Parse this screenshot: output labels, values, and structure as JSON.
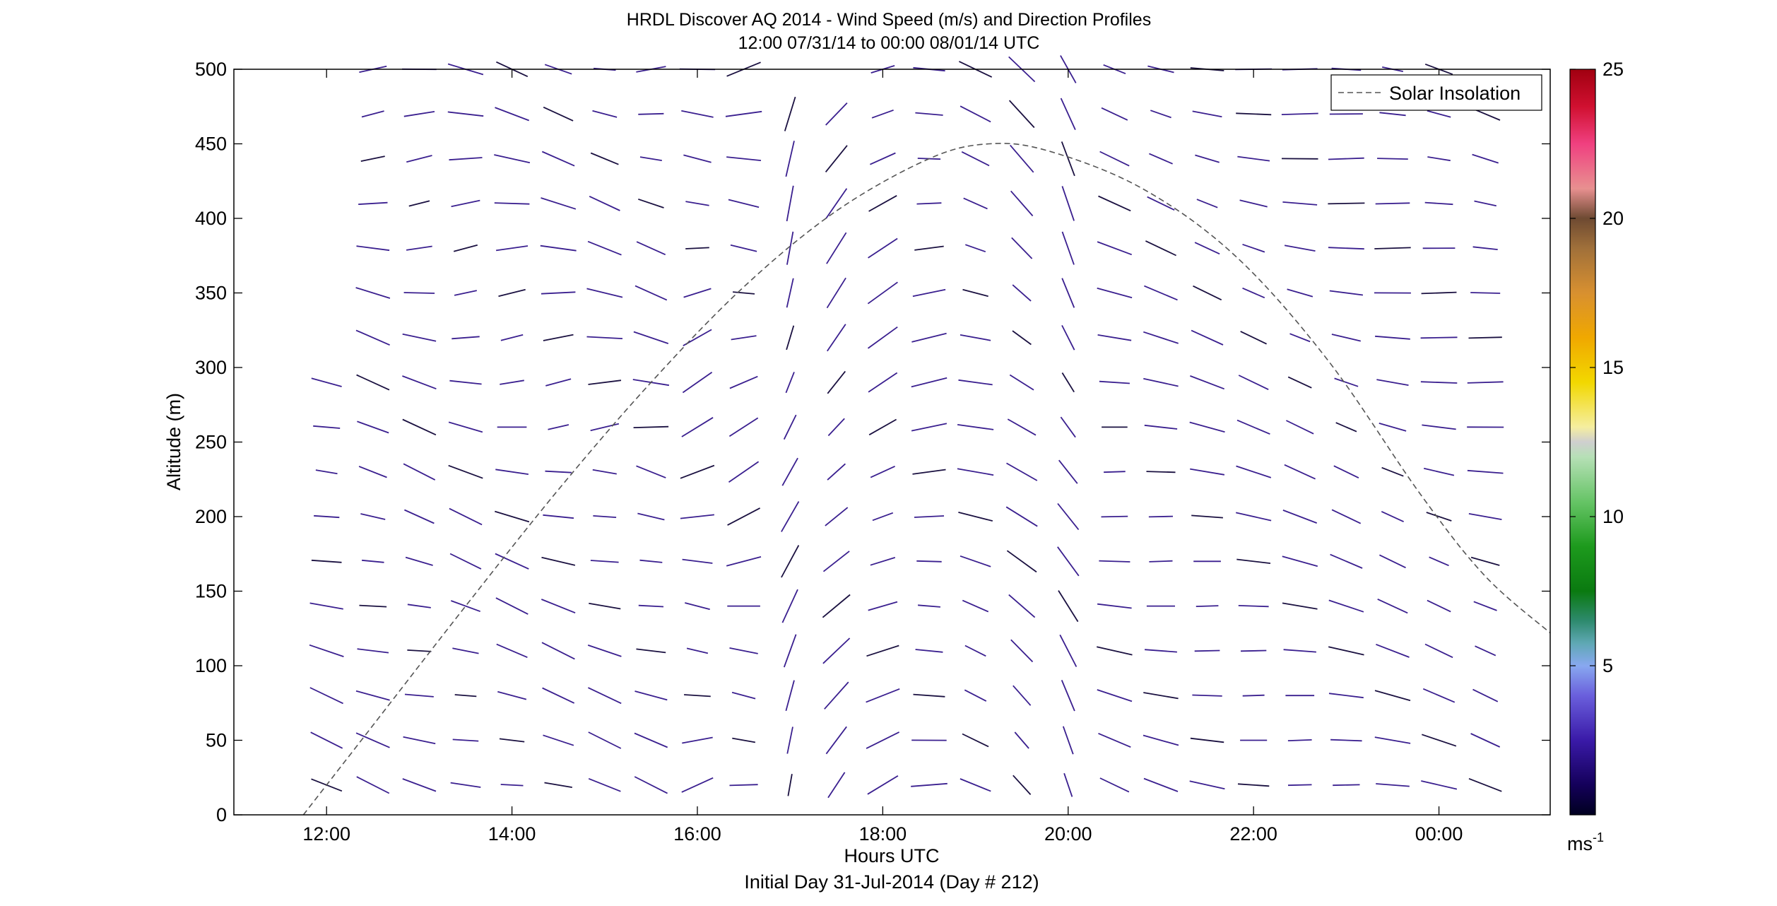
{
  "chart_data": {
    "type": "wind_barb_profile",
    "title": "HRDL Discover AQ 2014 - Wind Speed (m/s) and Direction Profiles",
    "subtitle": "12:00 07/31/14 to 00:00 08/01/14  UTC",
    "xlabel": "Hours UTC",
    "xlabel2": "Initial Day 31-Jul-2014 (Day # 212)",
    "ylabel": "Altitude (m)",
    "xlim": [
      11.0,
      25.2
    ],
    "ylim": [
      0,
      500
    ],
    "xticks": [
      12,
      14,
      16,
      18,
      20,
      22,
      24
    ],
    "xtick_labels": [
      "12:00",
      "14:00",
      "16:00",
      "18:00",
      "20:00",
      "22:00",
      "00:00"
    ],
    "yticks": [
      0,
      50,
      100,
      150,
      200,
      250,
      300,
      350,
      400,
      450,
      500
    ],
    "ytick_labels": [
      "0",
      "50",
      "100",
      "150",
      "200",
      "250",
      "300",
      "350",
      "400",
      "450",
      "500"
    ],
    "legend": {
      "entries": [
        "Solar Insolation"
      ],
      "position": "top-right"
    },
    "colorbar": {
      "min": 0,
      "max": 25,
      "ticks": [
        5,
        10,
        15,
        20,
        25
      ],
      "tick_labels": [
        "5",
        "10",
        "15",
        "20",
        "25"
      ],
      "units": "ms",
      "units_exp": "-1"
    },
    "solar_insolation": {
      "description_peak_time": 19.15,
      "points": [
        [
          11.75,
          0
        ],
        [
          12.5,
          60
        ],
        [
          13.5,
          140
        ],
        [
          14.5,
          218
        ],
        [
          15.5,
          290
        ],
        [
          16.5,
          354
        ],
        [
          17.5,
          405
        ],
        [
          18.5,
          440
        ],
        [
          19.15,
          450
        ],
        [
          19.8,
          445
        ],
        [
          20.8,
          420
        ],
        [
          21.8,
          375
        ],
        [
          22.8,
          305
        ],
        [
          23.8,
          215
        ],
        [
          24.5,
          160
        ],
        [
          25.2,
          122
        ]
      ]
    }
  },
  "colors": {
    "barb": "#3a1f8f",
    "barb_dark": "#1a1040",
    "axis": "#000000",
    "insolation": "#555555"
  }
}
